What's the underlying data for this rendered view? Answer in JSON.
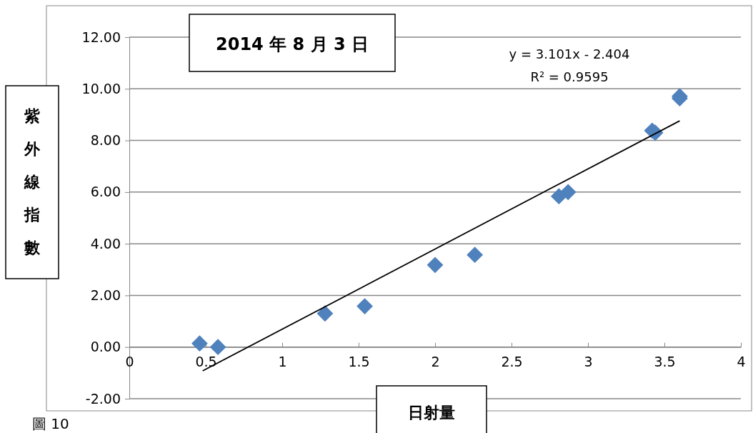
{
  "chart_data": {
    "type": "scatter",
    "title": "2014 年 8 月 3 日",
    "xlabel": "日射量",
    "ylabel": "紫外線指數",
    "xlim": [
      0,
      4
    ],
    "xticks": [
      0,
      0.5,
      1,
      1.5,
      2,
      2.5,
      3,
      3.5,
      4
    ],
    "ylim": [
      -2,
      12
    ],
    "yticks": [
      {
        "value": -2,
        "label": "-2.00"
      },
      {
        "value": 0,
        "label": "0.00"
      },
      {
        "value": 2,
        "label": "2.00"
      },
      {
        "value": 4,
        "label": "4.00"
      },
      {
        "value": 6,
        "label": "6.00"
      },
      {
        "value": 8,
        "label": "8.00"
      },
      {
        "value": 10,
        "label": "10.00"
      },
      {
        "value": 12,
        "label": "12.00"
      }
    ],
    "grid": "y",
    "marker": "diamond",
    "series": [
      {
        "color": "#4f81bd",
        "x": [
          0.46,
          0.58,
          1.28,
          1.54,
          2.0,
          2.26,
          2.81,
          2.87,
          3.42,
          3.44,
          3.6,
          3.6
        ],
        "values": [
          0.14,
          0.0,
          1.3,
          1.58,
          3.18,
          3.57,
          5.84,
          6.0,
          8.38,
          8.3,
          9.71,
          9.63
        ]
      },
      {
        "type": "line",
        "color": "#000000",
        "marker": "none",
        "line_style": "solid",
        "x": [
          0.48,
          3.6
        ],
        "values": [
          -0.92,
          8.76
        ]
      }
    ],
    "annotations": [
      "y = 3.101x - 2.404",
      "R² = 0.9595",
      "圖 10"
    ]
  }
}
